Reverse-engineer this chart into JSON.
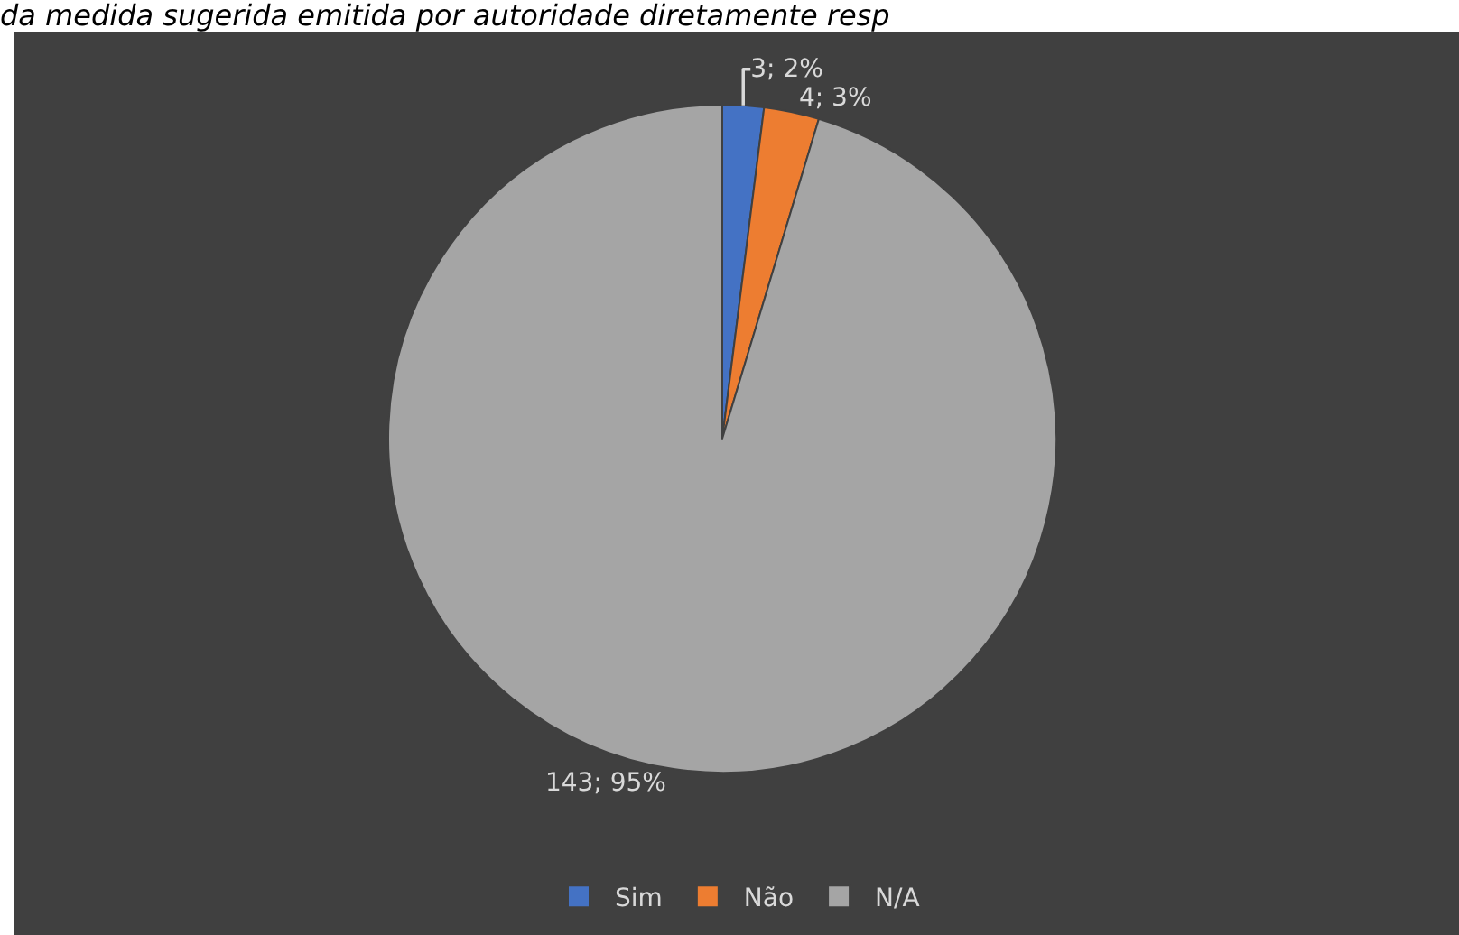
{
  "chart_data": {
    "type": "pie",
    "title": "da medida sugerida emitida por autoridade diretamente resp",
    "categories": [
      "Sim",
      "Não",
      "N/A"
    ],
    "values": [
      3,
      4,
      143
    ],
    "value_labels": [
      "3; 2%",
      "4; 3%",
      "143; 95%"
    ],
    "colors": [
      "#4472c4",
      "#ed7d31",
      "#a5a5a5"
    ],
    "legend": "bottom"
  }
}
